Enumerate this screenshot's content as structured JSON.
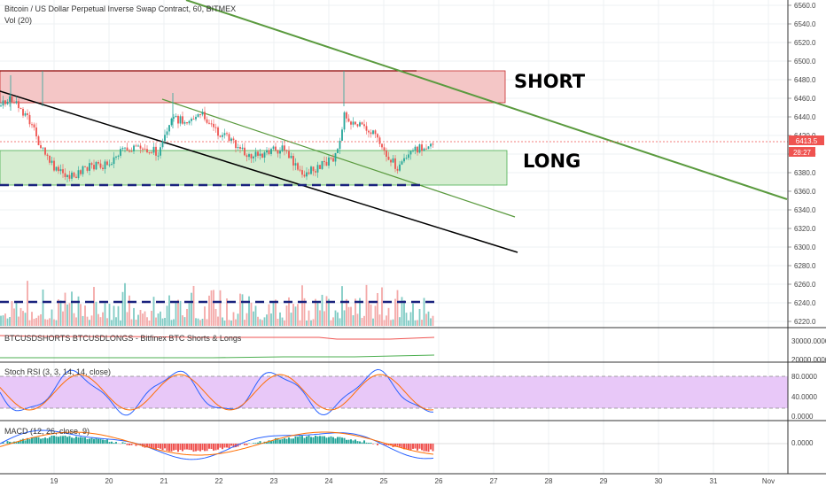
{
  "header": {
    "title": "Bitcoin / US Dollar Perpetual Inverse Swap Contract, 60, BITMEX",
    "volume_label": "Vol (20)"
  },
  "annotations": {
    "short_label": "SHORT",
    "long_label": "LONG"
  },
  "price_axis": {
    "ticks": [
      "6560.0",
      "6540.0",
      "6520.0",
      "6500.0",
      "6480.0",
      "6460.0",
      "6440.0",
      "6420.0",
      "6400.0",
      "6380.0",
      "6360.0",
      "6340.0",
      "6320.0",
      "6300.0",
      "6280.0",
      "6260.0",
      "6240.0",
      "6220.0"
    ],
    "current_price": "6413.5",
    "countdown": "28:27"
  },
  "panels": {
    "shorts_longs": {
      "title": "BTCUSDSHORTS BTCUSDLONGS - Bitfinex BTC Shorts & Longs",
      "ticks": [
        "30000.0000",
        "20000.0000"
      ]
    },
    "stoch_rsi": {
      "title": "Stoch RSI (3, 3, 14, 14, close)",
      "ticks": [
        "80.0000",
        "40.0000",
        "0.0000"
      ]
    },
    "macd": {
      "title": "MACD (12, 26, close, 9)",
      "ticks": [
        "0.0000"
      ]
    }
  },
  "time_axis": {
    "labels": [
      "19",
      "20",
      "21",
      "22",
      "23",
      "24",
      "25",
      "26",
      "27",
      "28",
      "29",
      "30",
      "31",
      "Nov"
    ]
  },
  "colors": {
    "short_zone": "#f4c6c6",
    "long_zone": "#d6edd1",
    "trendline_green": "#5a9a3e",
    "trendline_black": "#000000",
    "candle_up": "#26a69a",
    "candle_down": "#ef5350",
    "rsi_band": "#e8c8f8",
    "support_dash": "#1a237e"
  }
}
